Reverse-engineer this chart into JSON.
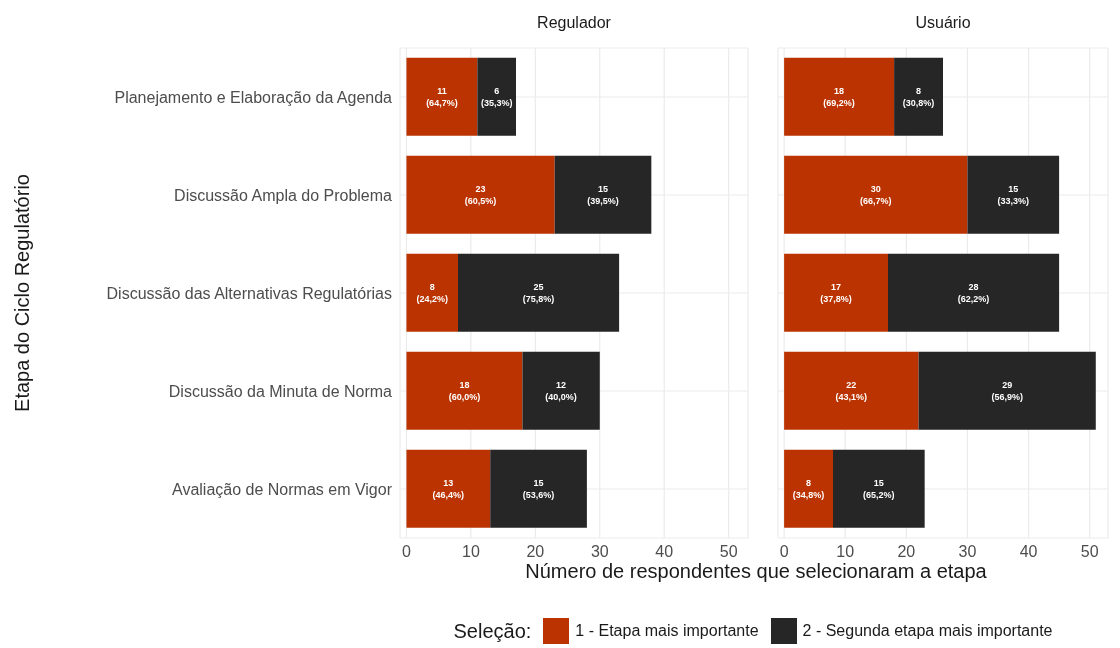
{
  "chart_data": [
    {
      "type": "bar",
      "orientation": "horizontal",
      "stacked": true,
      "title": "Regulador",
      "ylabel": "Etapa do Ciclo Regulatório",
      "xlabel": "Número de respondentes que selecionaram a etapa",
      "legend_title": "Seleção:",
      "legend": "bottom",
      "grid": true,
      "categories": [
        "Planejamento e Elaboração da Agenda",
        "Discussão Ampla do Problema",
        "Discussão das Alternativas Regulatórias",
        "Discussão da Minuta de Norma",
        "Avaliação de Normas em Vigor"
      ],
      "xlim": [
        -1,
        53
      ],
      "xticks": [
        0,
        10,
        20,
        30,
        40,
        50
      ],
      "series": [
        {
          "name": "1 - Etapa mais importante",
          "color": "#bb3300",
          "values": [
            11,
            23,
            8,
            18,
            13
          ],
          "value_labels": [
            "11\n(64,7%)",
            "23\n(60,5%)",
            "8\n(24,2%)",
            "18\n(60,0%)",
            "13\n(46,4%)"
          ]
        },
        {
          "name": "2 - Segunda etapa mais importante",
          "color": "#262626",
          "values": [
            6,
            15,
            25,
            12,
            15
          ],
          "value_labels": [
            "6\n(35,3%)",
            "15\n(39,5%)",
            "25\n(75,8%)",
            "12\n(40,0%)",
            "15\n(53,6%)"
          ]
        }
      ]
    },
    {
      "type": "bar",
      "orientation": "horizontal",
      "stacked": true,
      "title": "Usuário",
      "grid": true,
      "tick_labels": "x",
      "categories": [
        null,
        null,
        null,
        null,
        null
      ],
      "xlim": [
        -1,
        53
      ],
      "xticks": [
        0,
        10,
        20,
        30,
        40,
        50
      ],
      "series": [
        {
          "color": "#bb3300",
          "values": [
            18,
            30,
            17,
            22,
            8
          ],
          "value_labels": [
            "18\n(69,2%)",
            "30\n(66,7%)",
            "17\n(37,8%)",
            "22\n(43,1%)",
            "8\n(34,8%)"
          ]
        },
        {
          "color": "#262626",
          "values": [
            8,
            15,
            28,
            29,
            15
          ],
          "value_labels": [
            "8\n(30,8%)",
            "15\n(33,3%)",
            "28\n(62,2%)",
            "29\n(56,9%)",
            "15\n(65,2%)"
          ]
        }
      ]
    }
  ]
}
